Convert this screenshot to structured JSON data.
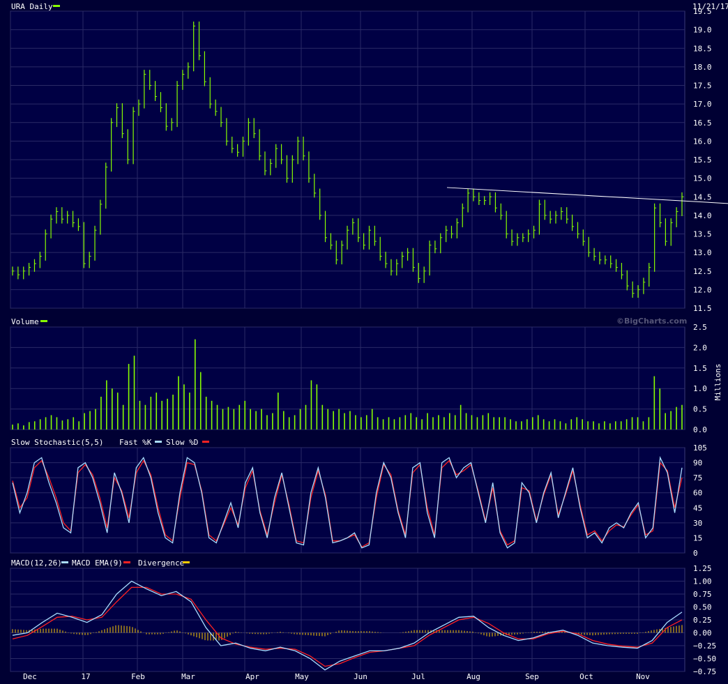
{
  "colors": {
    "background": "#000033",
    "panel": "#000044",
    "grid": "#2a2a66",
    "price": "#88ff00",
    "volume": "#88ff00",
    "fast_k": "#aaddff",
    "slow_d": "#ff2222",
    "macd": "#aaddff",
    "macd_ema": "#ff2222",
    "divergence": "#ffcc00",
    "trendline": "#ffffff",
    "text": "#ffffff"
  },
  "header": {
    "price_label": "URA Daily",
    "date": "11/21/17",
    "watermark": "©BigCharts.com"
  },
  "chart_data": [
    {
      "type": "line",
      "subtype": "ohlc-bar",
      "title": "URA Daily",
      "ylim": [
        11.5,
        19.5
      ],
      "yticks": [
        "11.5",
        "12.0",
        "12.5",
        "13.0",
        "13.5",
        "14.0",
        "14.5",
        "15.0",
        "15.5",
        "16.0",
        "16.5",
        "17.0",
        "17.5",
        "18.0",
        "18.5",
        "19.0",
        "19.5"
      ],
      "trendline": {
        "from": [
          "Jul 20",
          14.75
        ],
        "to": [
          "Nov 21",
          14.3
        ]
      },
      "series": [
        {
          "values": [
            12.5,
            12.4,
            12.5,
            12.6,
            12.7,
            12.9,
            13.5,
            13.9,
            14.1,
            13.9,
            14.0,
            13.8,
            13.7,
            12.7,
            12.9,
            13.6,
            14.3,
            15.3,
            16.5,
            16.9,
            16.2,
            15.5,
            16.8,
            17.0,
            17.8,
            17.5,
            17.2,
            16.9,
            16.4,
            16.5,
            17.5,
            17.8,
            18.0,
            19.1,
            18.3,
            17.6,
            17.0,
            16.8,
            16.5,
            16.0,
            15.8,
            15.7,
            16.0,
            16.5,
            16.2,
            15.6,
            15.2,
            15.4,
            15.8,
            15.5,
            15.0,
            15.5,
            16.0,
            15.6,
            15.0,
            14.6,
            14.0,
            13.4,
            13.2,
            12.8,
            13.2,
            13.6,
            13.8,
            13.4,
            13.2,
            13.6,
            13.3,
            12.9,
            12.7,
            12.5,
            12.7,
            12.9,
            13.0,
            12.6,
            12.3,
            12.5,
            13.2,
            13.1,
            13.4,
            13.6,
            13.5,
            13.8,
            14.2,
            14.6,
            14.5,
            14.4,
            14.4,
            14.5,
            14.2,
            14.0,
            13.5,
            13.3,
            13.4,
            13.4,
            13.5,
            13.6,
            14.3,
            14.0,
            13.9,
            14.0,
            14.1,
            13.9,
            13.7,
            13.5,
            13.3,
            13.0,
            12.9,
            12.8,
            12.8,
            12.7,
            12.6,
            12.4,
            12.1,
            11.9,
            12.0,
            12.2,
            12.6,
            14.2,
            13.8,
            13.3,
            13.8,
            14.1,
            14.5
          ]
        }
      ]
    },
    {
      "type": "bar",
      "title": "Volume",
      "ylabel": "Millions",
      "ylim": [
        0,
        2.5
      ],
      "yticks": [
        "0.0",
        "0.5",
        "1.0",
        "1.5",
        "2.0",
        "2.5"
      ],
      "series": [
        {
          "values": [
            0.12,
            0.15,
            0.1,
            0.18,
            0.2,
            0.25,
            0.3,
            0.35,
            0.3,
            0.22,
            0.25,
            0.3,
            0.2,
            0.4,
            0.45,
            0.5,
            0.8,
            1.2,
            1.0,
            0.9,
            0.6,
            1.6,
            1.8,
            0.7,
            0.6,
            0.8,
            0.9,
            0.7,
            0.75,
            0.85,
            1.3,
            1.1,
            0.9,
            2.2,
            1.4,
            0.8,
            0.7,
            0.6,
            0.5,
            0.55,
            0.5,
            0.6,
            0.7,
            0.5,
            0.45,
            0.5,
            0.35,
            0.4,
            0.9,
            0.45,
            0.3,
            0.35,
            0.5,
            0.6,
            1.2,
            1.1,
            0.6,
            0.5,
            0.45,
            0.5,
            0.4,
            0.45,
            0.35,
            0.3,
            0.35,
            0.5,
            0.3,
            0.25,
            0.3,
            0.25,
            0.3,
            0.35,
            0.4,
            0.3,
            0.25,
            0.4,
            0.3,
            0.35,
            0.3,
            0.4,
            0.35,
            0.6,
            0.4,
            0.35,
            0.3,
            0.35,
            0.4,
            0.3,
            0.3,
            0.3,
            0.25,
            0.2,
            0.2,
            0.25,
            0.3,
            0.35,
            0.25,
            0.2,
            0.25,
            0.2,
            0.15,
            0.25,
            0.3,
            0.25,
            0.2,
            0.2,
            0.15,
            0.2,
            0.15,
            0.2,
            0.2,
            0.25,
            0.3,
            0.3,
            0.2,
            0.3,
            1.3,
            1.0,
            0.4,
            0.45,
            0.55,
            0.6
          ]
        }
      ]
    },
    {
      "type": "line",
      "title": "Slow Stochastic(5,5)",
      "ylim": [
        0,
        105
      ],
      "yticks": [
        "0",
        "15",
        "30",
        "45",
        "60",
        "75",
        "90",
        "105"
      ],
      "series": [
        {
          "name": "Fast %K",
          "values": [
            70,
            40,
            60,
            90,
            95,
            70,
            50,
            25,
            20,
            85,
            90,
            75,
            50,
            20,
            80,
            60,
            30,
            85,
            95,
            75,
            40,
            15,
            10,
            60,
            95,
            90,
            60,
            15,
            10,
            30,
            50,
            25,
            70,
            85,
            40,
            15,
            55,
            80,
            45,
            10,
            8,
            60,
            85,
            55,
            10,
            12,
            15,
            20,
            5,
            8,
            60,
            90,
            75,
            40,
            15,
            85,
            90,
            40,
            15,
            90,
            95,
            75,
            85,
            90,
            60,
            30,
            70,
            20,
            5,
            10,
            70,
            60,
            30,
            60,
            80,
            35,
            60,
            85,
            45,
            15,
            20,
            10,
            25,
            30,
            25,
            40,
            50,
            15,
            25,
            95,
            80,
            40,
            85
          ]
        },
        {
          "name": "Slow %D",
          "values": [
            72,
            45,
            55,
            85,
            92,
            75,
            55,
            30,
            22,
            80,
            88,
            78,
            55,
            25,
            75,
            62,
            35,
            80,
            92,
            78,
            45,
            18,
            12,
            55,
            90,
            88,
            62,
            18,
            12,
            28,
            45,
            28,
            65,
            82,
            42,
            18,
            50,
            78,
            48,
            12,
            10,
            55,
            82,
            58,
            12,
            12,
            15,
            18,
            6,
            10,
            55,
            88,
            78,
            42,
            18,
            80,
            88,
            45,
            18,
            85,
            92,
            78,
            82,
            88,
            62,
            32,
            65,
            22,
            8,
            12,
            65,
            62,
            32,
            58,
            78,
            38,
            58,
            82,
            48,
            18,
            22,
            12,
            22,
            28,
            26,
            38,
            48,
            18,
            22,
            90,
            82,
            45,
            75
          ]
        }
      ]
    },
    {
      "type": "line",
      "title": "MACD(12,26)",
      "ylim": [
        -0.75,
        1.25
      ],
      "yticks": [
        "−0.75",
        "−0.50",
        "−0.25",
        "0.00",
        "0.25",
        "0.50",
        "0.75",
        "1.00",
        "1.25"
      ],
      "series": [
        {
          "name": "MACD(12,26)",
          "values": [
            -0.05,
            0.0,
            0.2,
            0.38,
            0.3,
            0.2,
            0.35,
            0.75,
            1.0,
            0.85,
            0.72,
            0.8,
            0.6,
            0.1,
            -0.25,
            -0.2,
            -0.3,
            -0.35,
            -0.28,
            -0.35,
            -0.5,
            -0.72,
            -0.55,
            -0.45,
            -0.35,
            -0.35,
            -0.3,
            -0.2,
            0.0,
            0.15,
            0.3,
            0.32,
            0.1,
            -0.05,
            -0.15,
            -0.1,
            0.0,
            0.05,
            -0.05,
            -0.2,
            -0.25,
            -0.28,
            -0.3,
            -0.15,
            0.2,
            0.4
          ]
        },
        {
          "name": "MACD EMA(9)",
          "values": [
            -0.12,
            -0.05,
            0.12,
            0.3,
            0.32,
            0.25,
            0.3,
            0.6,
            0.88,
            0.88,
            0.75,
            0.75,
            0.65,
            0.25,
            -0.1,
            -0.22,
            -0.28,
            -0.32,
            -0.3,
            -0.32,
            -0.45,
            -0.65,
            -0.6,
            -0.48,
            -0.38,
            -0.35,
            -0.3,
            -0.25,
            -0.05,
            0.1,
            0.25,
            0.3,
            0.18,
            0.0,
            -0.12,
            -0.12,
            -0.02,
            0.03,
            -0.02,
            -0.15,
            -0.22,
            -0.26,
            -0.28,
            -0.2,
            0.1,
            0.25
          ]
        },
        {
          "name": "Divergence",
          "values": [
            0.07,
            0.05,
            0.08,
            0.08,
            -0.02,
            -0.05,
            0.05,
            0.15,
            0.12,
            -0.03,
            -0.03,
            0.05,
            -0.05,
            -0.15,
            -0.15,
            0.02,
            -0.02,
            -0.03,
            0.02,
            -0.03,
            -0.05,
            -0.07,
            0.05,
            0.03,
            0.03,
            0.0,
            0.0,
            0.05,
            0.05,
            0.05,
            0.05,
            0.02,
            -0.08,
            -0.05,
            -0.03,
            0.02,
            0.02,
            0.02,
            -0.03,
            -0.05,
            -0.03,
            -0.02,
            -0.02,
            0.05,
            0.1,
            0.15
          ]
        }
      ]
    }
  ],
  "x_labels": [
    "Dec",
    "17",
    "Feb",
    "Mar",
    "Apr",
    "May",
    "Jun",
    "Jul",
    "Aug",
    "Sep",
    "Oct",
    "Nov"
  ],
  "panel_labels": {
    "volume": "Volume",
    "stoch": "Slow Stochastic(5,5)",
    "stoch_fast": "Fast %K",
    "stoch_slow": "Slow %D",
    "macd": "MACD(12,26)",
    "macd_ema": "MACD EMA(9)",
    "macd_div": "Divergence"
  }
}
